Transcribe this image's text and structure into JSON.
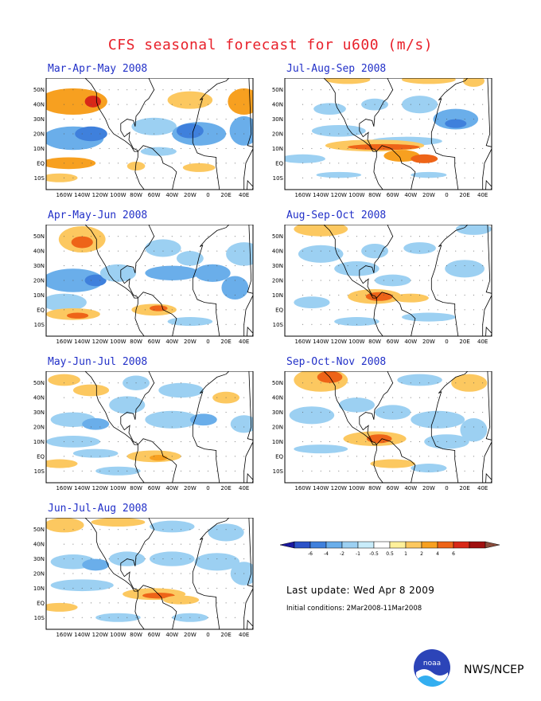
{
  "title": "CFS seasonal forecast for u600 (m/s)",
  "panels": [
    {
      "title": "Mar-Apr-May 2008"
    },
    {
      "title": "Jul-Aug-Sep 2008"
    },
    {
      "title": "Apr-May-Jun 2008"
    },
    {
      "title": "Aug-Sep-Oct 2008"
    },
    {
      "title": "May-Jun-Jul 2008"
    },
    {
      "title": "Sep-Oct-Nov 2008"
    },
    {
      "title": "Jun-Jul-Aug 2008"
    }
  ],
  "lat_labels": [
    "50N",
    "40N",
    "30N",
    "20N",
    "10N",
    "EQ",
    "10S"
  ],
  "lon_labels": [
    "160W",
    "140W",
    "120W",
    "100W",
    "80W",
    "60W",
    "40W",
    "20W",
    "0",
    "20E",
    "40E"
  ],
  "colorbar": {
    "ticks": [
      "-6",
      "-4",
      "-2",
      "-1",
      "-0.5",
      "0.5",
      "1",
      "2",
      "4",
      "6"
    ],
    "colors": [
      "#1a18a0",
      "#2b52c8",
      "#3f80dc",
      "#6aaeea",
      "#9cd0f2",
      "#c8ecfa",
      "#ffffff",
      "#fff09a",
      "#fcc860",
      "#f7a020",
      "#ee6418",
      "#d82818",
      "#a01010",
      "#8a4c3c"
    ]
  },
  "last_update": "Last update: Wed Apr 8 2009",
  "initial_conditions": "Initial conditions: 2Mar2008-11Mar2008",
  "agency": "NWS/NCEP",
  "logo": {
    "name": "noaa-logo",
    "text": "noaa"
  }
}
